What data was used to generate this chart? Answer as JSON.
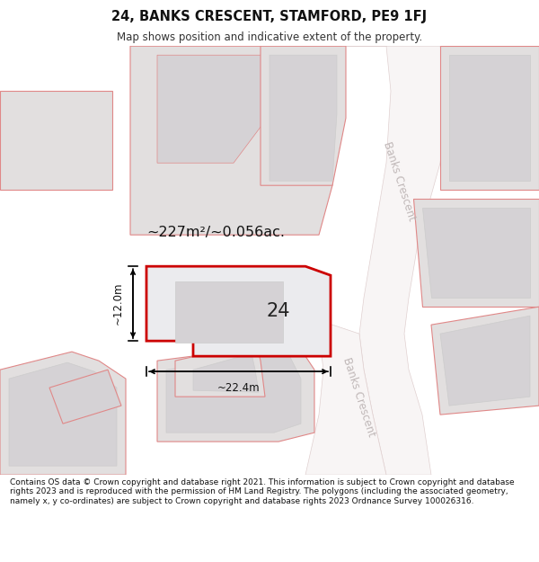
{
  "title_line1": "24, BANKS CRESCENT, STAMFORD, PE9 1FJ",
  "title_line2": "Map shows position and indicative extent of the property.",
  "footer_text": "Contains OS data © Crown copyright and database right 2021. This information is subject to Crown copyright and database rights 2023 and is reproduced with the permission of HM Land Registry. The polygons (including the associated geometry, namely x, y co-ordinates) are subject to Crown copyright and database rights 2023 Ordnance Survey 100026316.",
  "map_bg": "#f0eded",
  "plot_fill": "#ebebee",
  "plot_border": "#cc0000",
  "neighbor_fill": "#e2dfdf",
  "neighbor_border": "#e08888",
  "inner_fill": "#d5d2d5",
  "road_fill": "#f8f5f5",
  "road_border": "#e0d0d0",
  "road_text_color": "#c0b8b8",
  "area_text": "~227m²/~0.056ac.",
  "number_text": "24",
  "dim_h_text": "~12.0m",
  "dim_w_text": "~22.4m",
  "road_label": "Banks Crescent"
}
